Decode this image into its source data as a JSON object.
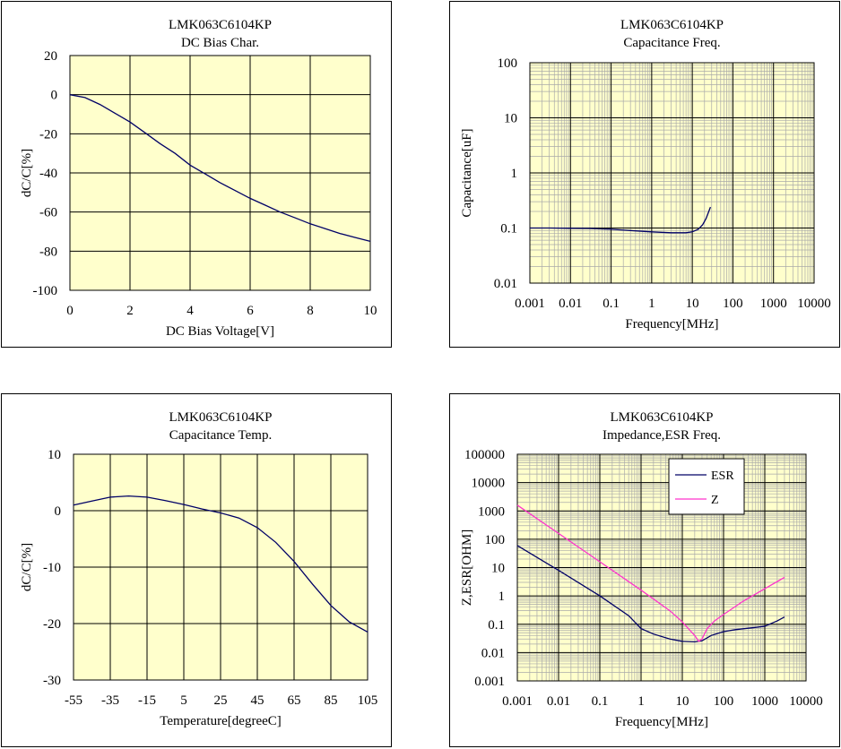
{
  "chart_data": [
    {
      "type": "line",
      "title": "LMK063C6104KP",
      "subtitle": "DC Bias Char.",
      "xlabel": "DC Bias Voltage[V]",
      "ylabel": "dC/C[%]",
      "xlim": [
        0,
        10
      ],
      "ylim": [
        -100,
        20
      ],
      "xticks": [
        0,
        2,
        4,
        6,
        8,
        10
      ],
      "yticks": [
        -100,
        -80,
        -60,
        -40,
        -20,
        0,
        20
      ],
      "xtick_labels": [
        "0",
        "2",
        "4",
        "6",
        "8",
        "10"
      ],
      "ytick_labels": [
        "-100",
        "-80",
        "-60",
        "-40",
        "-20",
        "0",
        "20"
      ],
      "grid": true,
      "plot_bg": "#ffffcc",
      "series": [
        {
          "color": "#000066",
          "x": [
            0,
            0.5,
            1,
            1.5,
            2,
            2.5,
            3,
            3.5,
            4,
            4.5,
            5,
            5.5,
            6,
            6.5,
            7,
            7.5,
            8,
            8.5,
            9,
            9.5,
            10
          ],
          "y": [
            0,
            -1.5,
            -5,
            -9.5,
            -14,
            -19.5,
            -25,
            -30,
            -36,
            -40.5,
            -45,
            -49,
            -53,
            -56.5,
            -60,
            -63,
            -66,
            -68.5,
            -71,
            -73,
            -75
          ]
        }
      ]
    },
    {
      "type": "line",
      "title": "LMK063C6104KP",
      "subtitle": "Capacitance Freq.",
      "xlabel": "Frequency[MHz]",
      "ylabel": "Capacitance[uF]",
      "xscale": "log",
      "yscale": "log",
      "xlim": [
        0.001,
        10000
      ],
      "ylim": [
        0.01,
        100
      ],
      "xticks": [
        0.001,
        0.01,
        0.1,
        1,
        10,
        100,
        1000,
        10000
      ],
      "yticks": [
        0.01,
        0.1,
        1,
        10,
        100
      ],
      "xtick_labels": [
        "0.001",
        "0.01",
        "0.1",
        "1",
        "10",
        "100",
        "1000",
        "10000"
      ],
      "ytick_labels": [
        "0.01",
        "0.1",
        "1",
        "10",
        "100"
      ],
      "grid": true,
      "plot_bg": "#ffffcc",
      "series": [
        {
          "color": "#000066",
          "x": [
            0.001,
            0.003,
            0.01,
            0.03,
            0.1,
            0.3,
            1,
            3,
            7,
            10,
            14,
            18,
            22,
            28
          ],
          "y": [
            0.1,
            0.1,
            0.099,
            0.098,
            0.095,
            0.09,
            0.085,
            0.082,
            0.082,
            0.085,
            0.095,
            0.115,
            0.15,
            0.24
          ]
        }
      ]
    },
    {
      "type": "line",
      "title": "LMK063C6104KP",
      "subtitle": "Capacitance Temp.",
      "xlabel": "Temperature[degreeC]",
      "ylabel": "dC/C[%]",
      "xlim": [
        -55,
        105
      ],
      "ylim": [
        -30,
        10
      ],
      "xticks": [
        -55,
        -35,
        -15,
        5,
        25,
        45,
        65,
        85,
        105
      ],
      "yticks": [
        -30,
        -20,
        -10,
        0,
        10
      ],
      "xtick_labels": [
        "-55",
        "-35",
        "-15",
        "5",
        "25",
        "45",
        "65",
        "85",
        "105"
      ],
      "ytick_labels": [
        "-30",
        "-20",
        "-10",
        "0",
        "10"
      ],
      "grid": true,
      "plot_bg": "#ffffcc",
      "series": [
        {
          "color": "#000066",
          "x": [
            -55,
            -45,
            -35,
            -25,
            -15,
            -5,
            5,
            15,
            25,
            35,
            45,
            55,
            65,
            75,
            85,
            95,
            105
          ],
          "y": [
            1.0,
            1.7,
            2.4,
            2.6,
            2.4,
            1.8,
            1.1,
            0.3,
            -0.4,
            -1.3,
            -3.0,
            -5.6,
            -9.0,
            -13.0,
            -16.8,
            -19.7,
            -21.5
          ]
        }
      ]
    },
    {
      "type": "line",
      "title": "LMK063C6104KP",
      "subtitle": "Impedance,ESR Freq.",
      "xlabel": "Frequency[MHz]",
      "ylabel": "Z,ESR[OHM]",
      "xscale": "log",
      "yscale": "log",
      "xlim": [
        0.001,
        10000
      ],
      "ylim": [
        0.001,
        100000
      ],
      "xticks": [
        0.001,
        0.01,
        0.1,
        1,
        10,
        100,
        1000,
        10000
      ],
      "yticks": [
        0.001,
        0.01,
        0.1,
        1,
        10,
        100,
        1000,
        10000,
        100000
      ],
      "xtick_labels": [
        "0.001",
        "0.01",
        "0.1",
        "1",
        "10",
        "100",
        "1000",
        "10000"
      ],
      "ytick_labels": [
        "0.001",
        "0.01",
        "0.1",
        "1",
        "10",
        "100",
        "1000",
        "10000",
        "100000"
      ],
      "grid": true,
      "plot_bg": "#ffffcc",
      "legend": "top-center",
      "series": [
        {
          "name": "ESR",
          "color": "#000066",
          "x": [
            0.001,
            0.01,
            0.1,
            0.5,
            1,
            2,
            5,
            10,
            20,
            30,
            50,
            100,
            200,
            500,
            1000,
            2000,
            3000
          ],
          "y": [
            60,
            8,
            1,
            0.2,
            0.07,
            0.045,
            0.03,
            0.025,
            0.024,
            0.026,
            0.04,
            0.055,
            0.065,
            0.075,
            0.085,
            0.13,
            0.18
          ]
        },
        {
          "name": "Z",
          "color": "#ff33cc",
          "x": [
            0.001,
            0.01,
            0.1,
            1,
            5,
            10,
            20,
            25,
            30,
            40,
            60,
            100,
            300,
            1000,
            3000
          ],
          "y": [
            1600,
            160,
            16,
            1.6,
            0.3,
            0.12,
            0.04,
            0.025,
            0.03,
            0.07,
            0.13,
            0.22,
            0.65,
            1.8,
            4.5
          ]
        }
      ]
    }
  ]
}
